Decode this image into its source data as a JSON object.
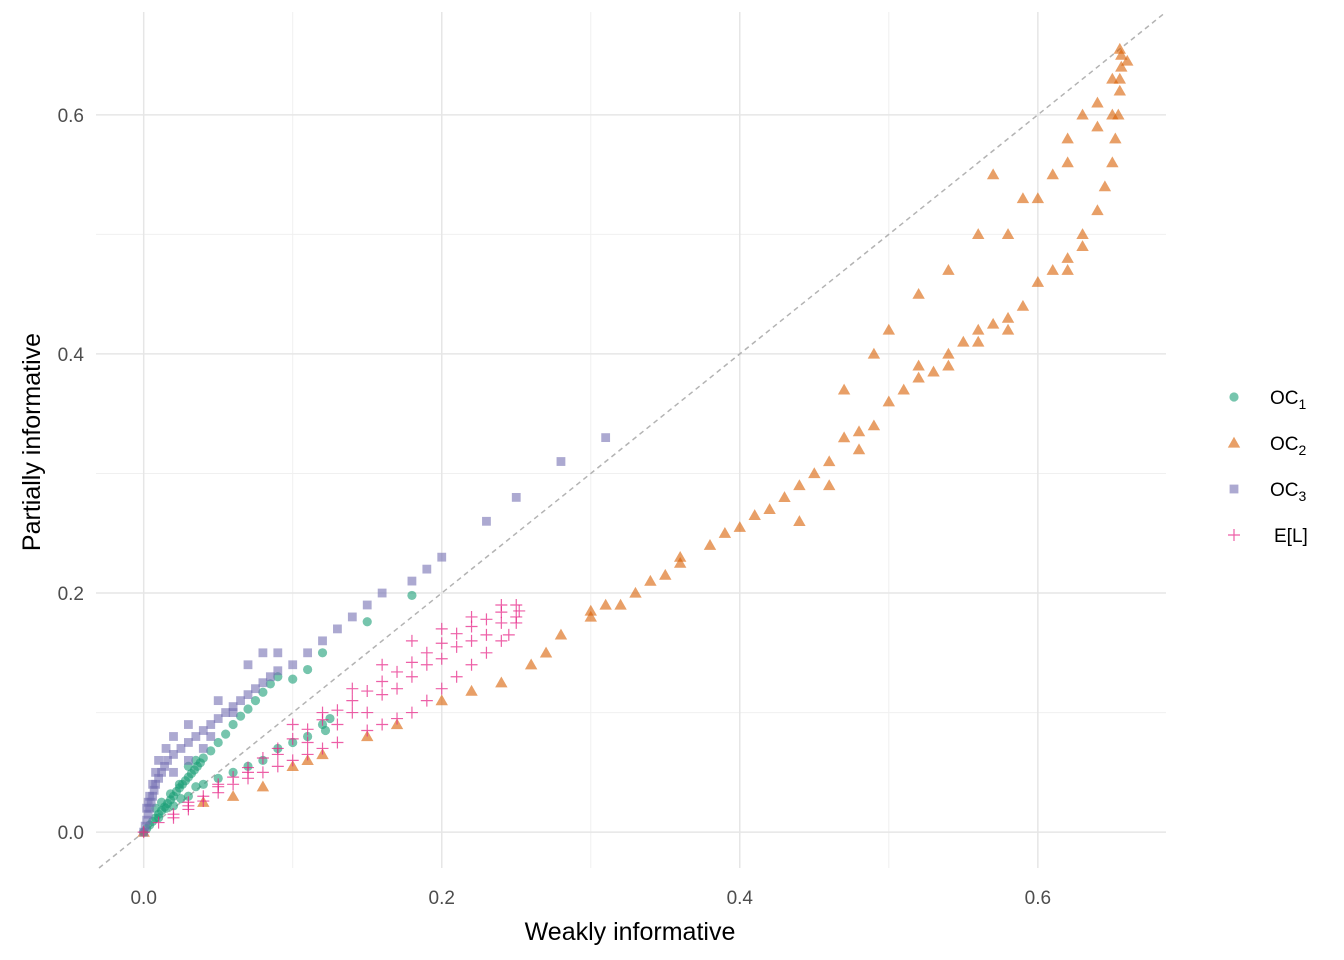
{
  "chart_data": {
    "type": "scatter",
    "title": "",
    "xlabel": "Weakly informative",
    "ylabel": "Partially informative",
    "xlim": [
      -0.032,
      0.686
    ],
    "ylim": [
      -0.03,
      0.686
    ],
    "x_ticks": [
      0.0,
      0.2,
      0.4,
      0.6
    ],
    "x_tick_labels": [
      "0.0",
      "0.2",
      "0.4",
      "0.6"
    ],
    "y_ticks": [
      0.0,
      0.2,
      0.4,
      0.6
    ],
    "y_tick_labels": [
      "0.0",
      "0.2",
      "0.4",
      "0.6"
    ],
    "grid": true,
    "reference_line": {
      "slope": 1,
      "intercept": 0,
      "style": "dashed",
      "color": "#b3b3b3"
    },
    "legend": {
      "position": "right",
      "entries": [
        {
          "base": "OC",
          "sub": "1",
          "shape": "circle",
          "color": "#1b9e77"
        },
        {
          "base": "OC",
          "sub": "2",
          "shape": "triangle",
          "color": "#d95f02"
        },
        {
          "base": "OC",
          "sub": "3",
          "shape": "square",
          "color": "#7570b3"
        },
        {
          "base": "E[L]",
          "sub": "",
          "shape": "plus",
          "color": "#e7298a"
        }
      ]
    },
    "series": [
      {
        "name": "OC1",
        "shape": "circle",
        "color": "#1b9e77",
        "points": [
          [
            0.0,
            0.0
          ],
          [
            0.002,
            0.003
          ],
          [
            0.004,
            0.006
          ],
          [
            0.006,
            0.009
          ],
          [
            0.008,
            0.012
          ],
          [
            0.01,
            0.015
          ],
          [
            0.012,
            0.018
          ],
          [
            0.014,
            0.021
          ],
          [
            0.016,
            0.024
          ],
          [
            0.018,
            0.027
          ],
          [
            0.02,
            0.03
          ],
          [
            0.022,
            0.034
          ],
          [
            0.024,
            0.037
          ],
          [
            0.026,
            0.04
          ],
          [
            0.028,
            0.043
          ],
          [
            0.03,
            0.046
          ],
          [
            0.032,
            0.049
          ],
          [
            0.034,
            0.052
          ],
          [
            0.036,
            0.055
          ],
          [
            0.038,
            0.058
          ],
          [
            0.04,
            0.062
          ],
          [
            0.045,
            0.068
          ],
          [
            0.05,
            0.075
          ],
          [
            0.055,
            0.082
          ],
          [
            0.06,
            0.09
          ],
          [
            0.065,
            0.097
          ],
          [
            0.07,
            0.103
          ],
          [
            0.075,
            0.11
          ],
          [
            0.08,
            0.117
          ],
          [
            0.085,
            0.124
          ],
          [
            0.09,
            0.13
          ],
          [
            0.1,
            0.128
          ],
          [
            0.11,
            0.136
          ],
          [
            0.12,
            0.15
          ],
          [
            0.15,
            0.176
          ],
          [
            0.18,
            0.198
          ],
          [
            0.12,
            0.09
          ],
          [
            0.122,
            0.085
          ],
          [
            0.125,
            0.095
          ],
          [
            0.11,
            0.08
          ],
          [
            0.09,
            0.07
          ],
          [
            0.07,
            0.055
          ],
          [
            0.05,
            0.045
          ],
          [
            0.03,
            0.03
          ],
          [
            0.02,
            0.022
          ],
          [
            0.01,
            0.012
          ],
          [
            0.015,
            0.02
          ],
          [
            0.025,
            0.028
          ],
          [
            0.035,
            0.038
          ],
          [
            0.04,
            0.04
          ],
          [
            0.06,
            0.05
          ],
          [
            0.08,
            0.06
          ],
          [
            0.1,
            0.075
          ],
          [
            0.012,
            0.025
          ],
          [
            0.018,
            0.032
          ],
          [
            0.024,
            0.04
          ],
          [
            0.03,
            0.055
          ],
          [
            0.035,
            0.06
          ],
          [
            0.008,
            0.02
          ]
        ]
      },
      {
        "name": "OC2",
        "shape": "triangle",
        "color": "#d95f02",
        "points": [
          [
            0.0,
            0.0
          ],
          [
            0.04,
            0.025
          ],
          [
            0.06,
            0.03
          ],
          [
            0.08,
            0.038
          ],
          [
            0.1,
            0.055
          ],
          [
            0.11,
            0.06
          ],
          [
            0.12,
            0.065
          ],
          [
            0.15,
            0.08
          ],
          [
            0.17,
            0.09
          ],
          [
            0.2,
            0.11
          ],
          [
            0.22,
            0.118
          ],
          [
            0.24,
            0.125
          ],
          [
            0.26,
            0.14
          ],
          [
            0.27,
            0.15
          ],
          [
            0.28,
            0.165
          ],
          [
            0.3,
            0.18
          ],
          [
            0.31,
            0.19
          ],
          [
            0.33,
            0.2
          ],
          [
            0.35,
            0.215
          ],
          [
            0.36,
            0.225
          ],
          [
            0.38,
            0.24
          ],
          [
            0.39,
            0.25
          ],
          [
            0.4,
            0.255
          ],
          [
            0.41,
            0.265
          ],
          [
            0.42,
            0.27
          ],
          [
            0.43,
            0.28
          ],
          [
            0.44,
            0.29
          ],
          [
            0.45,
            0.3
          ],
          [
            0.46,
            0.31
          ],
          [
            0.47,
            0.33
          ],
          [
            0.48,
            0.335
          ],
          [
            0.49,
            0.34
          ],
          [
            0.5,
            0.36
          ],
          [
            0.51,
            0.37
          ],
          [
            0.52,
            0.38
          ],
          [
            0.53,
            0.385
          ],
          [
            0.54,
            0.39
          ],
          [
            0.55,
            0.41
          ],
          [
            0.56,
            0.42
          ],
          [
            0.57,
            0.425
          ],
          [
            0.58,
            0.43
          ],
          [
            0.59,
            0.44
          ],
          [
            0.6,
            0.46
          ],
          [
            0.61,
            0.47
          ],
          [
            0.62,
            0.48
          ],
          [
            0.63,
            0.5
          ],
          [
            0.64,
            0.52
          ],
          [
            0.645,
            0.54
          ],
          [
            0.65,
            0.56
          ],
          [
            0.652,
            0.58
          ],
          [
            0.654,
            0.6
          ],
          [
            0.655,
            0.62
          ],
          [
            0.656,
            0.64
          ],
          [
            0.656,
            0.65
          ],
          [
            0.65,
            0.63
          ],
          [
            0.64,
            0.61
          ],
          [
            0.63,
            0.6
          ],
          [
            0.62,
            0.58
          ],
          [
            0.61,
            0.55
          ],
          [
            0.59,
            0.53
          ],
          [
            0.57,
            0.55
          ],
          [
            0.56,
            0.5
          ],
          [
            0.54,
            0.47
          ],
          [
            0.52,
            0.45
          ],
          [
            0.5,
            0.42
          ],
          [
            0.49,
            0.4
          ],
          [
            0.47,
            0.37
          ],
          [
            0.58,
            0.5
          ],
          [
            0.6,
            0.53
          ],
          [
            0.62,
            0.56
          ],
          [
            0.64,
            0.59
          ],
          [
            0.3,
            0.185
          ],
          [
            0.32,
            0.19
          ],
          [
            0.34,
            0.21
          ],
          [
            0.36,
            0.23
          ],
          [
            0.44,
            0.26
          ],
          [
            0.46,
            0.29
          ],
          [
            0.48,
            0.32
          ],
          [
            0.52,
            0.39
          ],
          [
            0.54,
            0.4
          ],
          [
            0.56,
            0.41
          ],
          [
            0.58,
            0.42
          ],
          [
            0.62,
            0.47
          ],
          [
            0.63,
            0.49
          ],
          [
            0.65,
            0.6
          ],
          [
            0.655,
            0.63
          ],
          [
            0.66,
            0.645
          ],
          [
            0.655,
            0.655
          ]
        ]
      },
      {
        "name": "OC3",
        "shape": "square",
        "color": "#7570b3",
        "points": [
          [
            0.0,
            0.0
          ],
          [
            0.001,
            0.005
          ],
          [
            0.002,
            0.01
          ],
          [
            0.003,
            0.015
          ],
          [
            0.004,
            0.02
          ],
          [
            0.005,
            0.025
          ],
          [
            0.006,
            0.03
          ],
          [
            0.007,
            0.035
          ],
          [
            0.008,
            0.04
          ],
          [
            0.01,
            0.045
          ],
          [
            0.012,
            0.05
          ],
          [
            0.014,
            0.055
          ],
          [
            0.016,
            0.06
          ],
          [
            0.02,
            0.065
          ],
          [
            0.025,
            0.07
          ],
          [
            0.03,
            0.075
          ],
          [
            0.035,
            0.08
          ],
          [
            0.04,
            0.085
          ],
          [
            0.045,
            0.09
          ],
          [
            0.05,
            0.095
          ],
          [
            0.055,
            0.1
          ],
          [
            0.06,
            0.105
          ],
          [
            0.065,
            0.11
          ],
          [
            0.07,
            0.115
          ],
          [
            0.075,
            0.12
          ],
          [
            0.08,
            0.125
          ],
          [
            0.085,
            0.13
          ],
          [
            0.09,
            0.135
          ],
          [
            0.1,
            0.14
          ],
          [
            0.11,
            0.15
          ],
          [
            0.12,
            0.16
          ],
          [
            0.13,
            0.17
          ],
          [
            0.14,
            0.18
          ],
          [
            0.15,
            0.19
          ],
          [
            0.16,
            0.2
          ],
          [
            0.18,
            0.21
          ],
          [
            0.19,
            0.22
          ],
          [
            0.2,
            0.23
          ],
          [
            0.23,
            0.26
          ],
          [
            0.25,
            0.28
          ],
          [
            0.28,
            0.31
          ],
          [
            0.31,
            0.33
          ],
          [
            0.004,
            0.03
          ],
          [
            0.006,
            0.04
          ],
          [
            0.008,
            0.05
          ],
          [
            0.01,
            0.06
          ],
          [
            0.015,
            0.07
          ],
          [
            0.02,
            0.08
          ],
          [
            0.03,
            0.09
          ],
          [
            0.05,
            0.11
          ],
          [
            0.07,
            0.14
          ],
          [
            0.08,
            0.15
          ],
          [
            0.09,
            0.15
          ],
          [
            0.02,
            0.05
          ],
          [
            0.03,
            0.06
          ],
          [
            0.04,
            0.07
          ],
          [
            0.045,
            0.08
          ],
          [
            0.06,
            0.1
          ],
          [
            0.002,
            0.02
          ],
          [
            0.003,
            0.025
          ]
        ]
      },
      {
        "name": "E[L]",
        "shape": "plus",
        "color": "#e7298a",
        "points": [
          [
            0.0,
            0.0
          ],
          [
            0.01,
            0.008
          ],
          [
            0.02,
            0.015
          ],
          [
            0.03,
            0.022
          ],
          [
            0.04,
            0.03
          ],
          [
            0.05,
            0.038
          ],
          [
            0.06,
            0.046
          ],
          [
            0.07,
            0.054
          ],
          [
            0.08,
            0.062
          ],
          [
            0.09,
            0.07
          ],
          [
            0.1,
            0.078
          ],
          [
            0.11,
            0.086
          ],
          [
            0.12,
            0.094
          ],
          [
            0.13,
            0.102
          ],
          [
            0.14,
            0.11
          ],
          [
            0.15,
            0.118
          ],
          [
            0.16,
            0.126
          ],
          [
            0.17,
            0.134
          ],
          [
            0.18,
            0.142
          ],
          [
            0.19,
            0.15
          ],
          [
            0.2,
            0.158
          ],
          [
            0.21,
            0.166
          ],
          [
            0.22,
            0.172
          ],
          [
            0.23,
            0.178
          ],
          [
            0.24,
            0.184
          ],
          [
            0.25,
            0.19
          ],
          [
            0.252,
            0.185
          ],
          [
            0.25,
            0.175
          ],
          [
            0.245,
            0.165
          ],
          [
            0.24,
            0.16
          ],
          [
            0.23,
            0.15
          ],
          [
            0.22,
            0.14
          ],
          [
            0.21,
            0.13
          ],
          [
            0.2,
            0.12
          ],
          [
            0.19,
            0.11
          ],
          [
            0.18,
            0.1
          ],
          [
            0.17,
            0.095
          ],
          [
            0.16,
            0.09
          ],
          [
            0.15,
            0.085
          ],
          [
            0.13,
            0.075
          ],
          [
            0.12,
            0.07
          ],
          [
            0.11,
            0.065
          ],
          [
            0.1,
            0.06
          ],
          [
            0.09,
            0.055
          ],
          [
            0.08,
            0.05
          ],
          [
            0.07,
            0.045
          ],
          [
            0.06,
            0.04
          ],
          [
            0.05,
            0.033
          ],
          [
            0.04,
            0.026
          ],
          [
            0.03,
            0.019
          ],
          [
            0.02,
            0.012
          ],
          [
            0.1,
            0.09
          ],
          [
            0.12,
            0.1
          ],
          [
            0.14,
            0.12
          ],
          [
            0.16,
            0.14
          ],
          [
            0.18,
            0.16
          ],
          [
            0.2,
            0.17
          ],
          [
            0.22,
            0.18
          ],
          [
            0.24,
            0.19
          ],
          [
            0.25,
            0.18
          ],
          [
            0.23,
            0.165
          ],
          [
            0.21,
            0.155
          ],
          [
            0.19,
            0.14
          ],
          [
            0.17,
            0.12
          ],
          [
            0.15,
            0.1
          ],
          [
            0.13,
            0.09
          ],
          [
            0.11,
            0.075
          ],
          [
            0.09,
            0.065
          ],
          [
            0.07,
            0.05
          ],
          [
            0.05,
            0.04
          ],
          [
            0.03,
            0.025
          ],
          [
            0.2,
            0.145
          ],
          [
            0.22,
            0.16
          ],
          [
            0.24,
            0.175
          ],
          [
            0.18,
            0.13
          ],
          [
            0.16,
            0.115
          ],
          [
            0.14,
            0.1
          ]
        ]
      }
    ]
  }
}
